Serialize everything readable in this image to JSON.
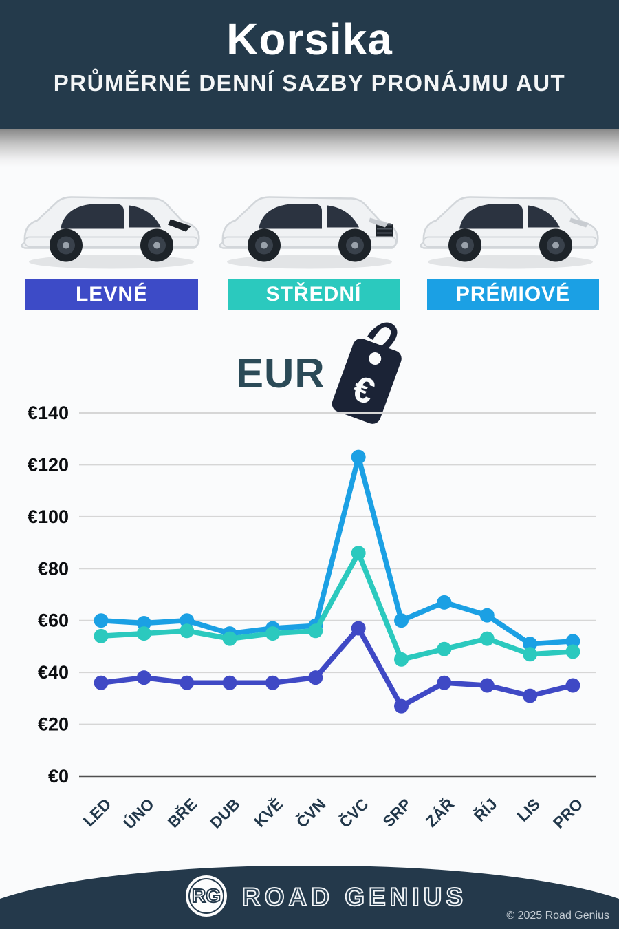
{
  "header": {
    "title": "Korsika",
    "subtitle": "PRŮMĚRNÉ DENNÍ SAZBY PRONÁJMU AUT"
  },
  "categories": [
    {
      "label": "LEVNÉ",
      "color": "#3d4bc7",
      "car_icon": "hatchback-car-image"
    },
    {
      "label": "STŘEDNÍ",
      "color": "#2bc9be",
      "car_icon": "suv-car-image"
    },
    {
      "label": "PRÉMIOVÉ",
      "color": "#1ba0e4",
      "car_icon": "premium-suv-car-image"
    }
  ],
  "currency": {
    "label": "EUR",
    "symbol": "€",
    "tag_icon": "price-tag-euro-icon",
    "tag_color": "#1b2336"
  },
  "chart_data": {
    "type": "line",
    "title": "",
    "xlabel": "",
    "ylabel": "",
    "categories": [
      "LED",
      "ÚNO",
      "BŘE",
      "DUB",
      "KVĚ",
      "ČVN",
      "ČVC",
      "SRP",
      "ZÁŘ",
      "ŘÍJ",
      "LIS",
      "PRO"
    ],
    "series": [
      {
        "name": "PRÉMIOVÉ",
        "color": "#1ba0e4",
        "values": [
          60,
          59,
          60,
          55,
          57,
          58,
          123,
          60,
          67,
          62,
          51,
          52
        ]
      },
      {
        "name": "STŘEDNÍ",
        "color": "#2bc9be",
        "values": [
          54,
          55,
          56,
          53,
          55,
          56,
          86,
          45,
          49,
          53,
          47,
          48
        ]
      },
      {
        "name": "LEVNÉ",
        "color": "#3f49c5",
        "values": [
          36,
          38,
          36,
          36,
          36,
          38,
          57,
          27,
          36,
          35,
          31,
          35
        ]
      }
    ],
    "ylabels": [
      "€0",
      "€20",
      "€40",
      "€60",
      "€80",
      "€100",
      "€120",
      "€140"
    ],
    "ylim": [
      0,
      140
    ],
    "ytick_step": 20,
    "grid": true,
    "legend_position": "none"
  },
  "footer": {
    "logo_text": "RG",
    "brand": "ROAD GENIUS",
    "copyright": "© 2025 Road Genius"
  }
}
